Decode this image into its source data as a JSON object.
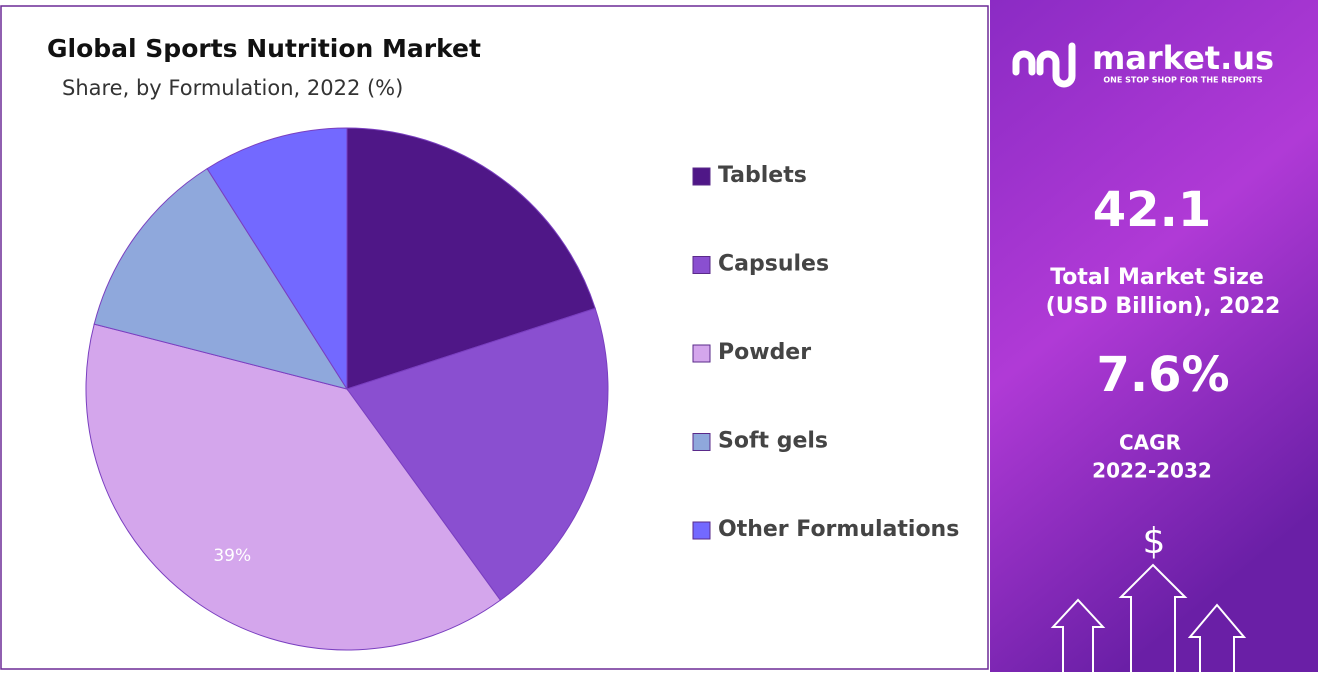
{
  "chart_data": {
    "type": "pie",
    "title": "Global Sports Nutrition Market",
    "subtitle": "Share, by Formulation, 2022 (%)",
    "categories": [
      "Tablets",
      "Capsules",
      "Powder",
      "Soft gels",
      "Other Formulations"
    ],
    "values": [
      20,
      20,
      39,
      12,
      9
    ],
    "value_labels": [
      null,
      null,
      "39%",
      null,
      null
    ],
    "colors": [
      "#4f1787",
      "#8a4fd0",
      "#d4a6ec",
      "#8fa8dc",
      "#7369ff"
    ],
    "legend": "right"
  },
  "panel": {
    "logo": "market.us",
    "tagline": "ONE STOP SHOP FOR THE REPORTS",
    "market_size": "42.1",
    "market_size_label": [
      "Total Market Size",
      "(USD Billion), 2022"
    ],
    "cagr": "7.6%",
    "cagr_label": [
      "CAGR",
      "2022-2032"
    ],
    "icon": "$"
  }
}
